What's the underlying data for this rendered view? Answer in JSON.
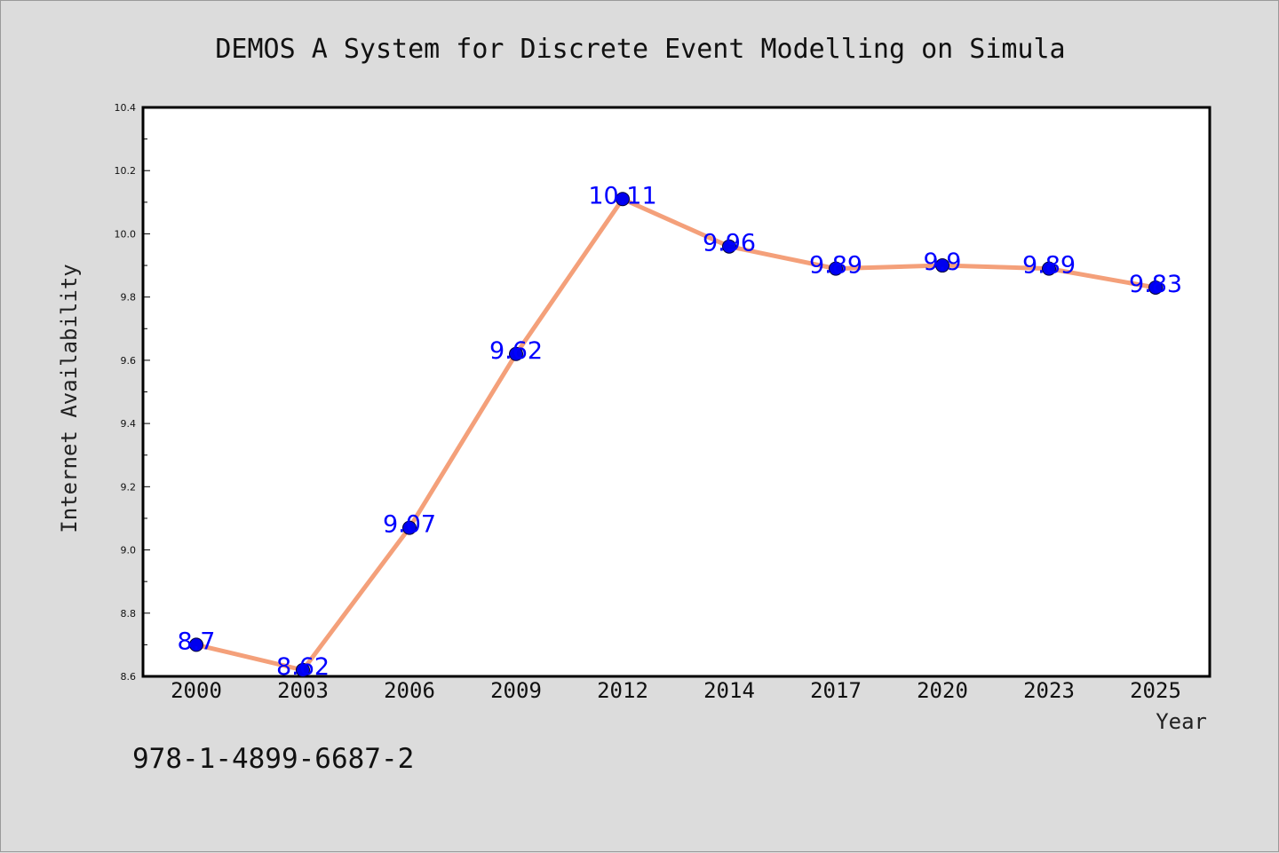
{
  "chart_data": {
    "type": "line",
    "title": "DEMOS A System for Discrete Event Modelling on Simula",
    "xlabel": "Year",
    "ylabel": "Internet Availability",
    "categories": [
      "2000",
      "2003",
      "2006",
      "2009",
      "2012",
      "2014",
      "2017",
      "2020",
      "2023",
      "2025"
    ],
    "series": [
      {
        "values": [
          8.7,
          8.62,
          9.07,
          9.62,
          10.11,
          9.96,
          9.89,
          9.9,
          9.89,
          9.83
        ],
        "data_labels": [
          "8.7",
          "8.62",
          "9.07",
          "9.62",
          "10.11",
          "9.96",
          "9.89",
          "9.9",
          "9.89",
          "9.83"
        ]
      }
    ],
    "ylim": [
      8.6,
      10.4
    ],
    "yticks": [
      "8.6",
      "8.8",
      "9.0",
      "9.2",
      "9.4",
      "9.6",
      "9.8",
      "10.0",
      "10.2",
      "10.4"
    ],
    "grid": false,
    "legend": "none"
  },
  "footer_text": "978-1-4899-6687-2",
  "colors": {
    "background": "#dcdcdc",
    "plot_area": "#ffffff",
    "line": "#f4a07a",
    "marker": "#0000ee",
    "data_label": "#0000ff"
  }
}
